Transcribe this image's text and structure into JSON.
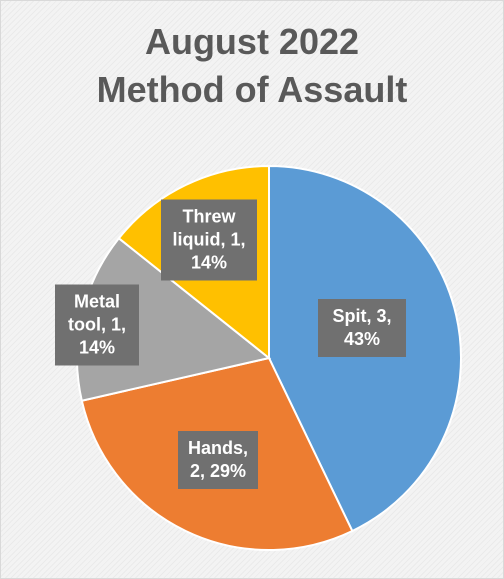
{
  "chart_data": {
    "type": "pie",
    "title_lines": [
      "August 2022",
      "Method of Assault"
    ],
    "slices": [
      {
        "category": "Spit",
        "value": 3,
        "percent": "43%",
        "color": "#5b9bd5",
        "label_lines": [
          "Spit, 3,",
          "43%"
        ]
      },
      {
        "category": "Hands",
        "value": 2,
        "percent": "29%",
        "color": "#ed7d31",
        "label_lines": [
          "Hands,",
          "2, 29%"
        ]
      },
      {
        "category": "Metal tool",
        "value": 1,
        "percent": "14%",
        "color": "#a5a5a5",
        "label_lines": [
          "Metal",
          "tool, 1,",
          "14%"
        ]
      },
      {
        "category": "Threw liquid",
        "value": 1,
        "percent": "14%",
        "color": "#ffc000",
        "label_lines": [
          "Threw",
          "liquid, 1,",
          "14%"
        ]
      }
    ]
  }
}
